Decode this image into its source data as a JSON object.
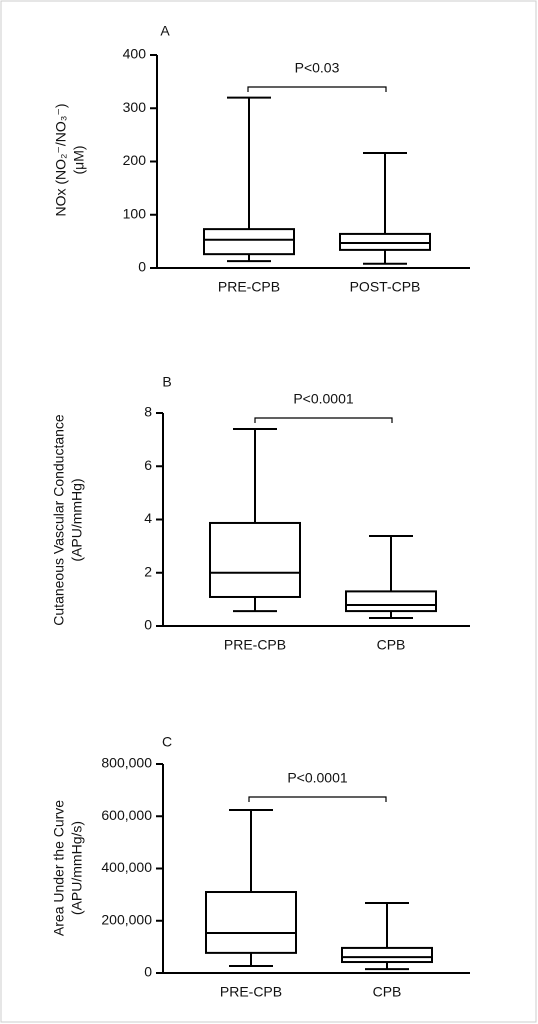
{
  "chart_data": [
    {
      "type": "box",
      "panel": "A",
      "ylabel": [
        "NOx (NO₂⁻/NO₃⁻)",
        "(μM)"
      ],
      "annotation": "P<0.03",
      "color": "#000000",
      "categories": [
        "PRE-CPB",
        "POST-CPB"
      ],
      "min": [
        13,
        8
      ],
      "q1": [
        26,
        34
      ],
      "median": [
        53,
        47
      ],
      "q3": [
        73,
        64
      ],
      "max": [
        320,
        216
      ],
      "ylim": [
        0,
        400
      ],
      "yticks": [
        0,
        100,
        200,
        300,
        400
      ]
    },
    {
      "type": "box",
      "panel": "B",
      "ylabel": [
        "Cutaneous Vascular Conductance",
        "(APU/mmHg)"
      ],
      "annotation": "P<0.0001",
      "color": "#000000",
      "categories": [
        "PRE-CPB",
        "CPB"
      ],
      "min": [
        0.56,
        0.3
      ],
      "q1": [
        1.09,
        0.56
      ],
      "median": [
        2.0,
        0.79
      ],
      "q3": [
        3.87,
        1.3
      ],
      "max": [
        7.4,
        3.38
      ],
      "ylim": [
        0,
        8
      ],
      "yticks": [
        0,
        2,
        4,
        6,
        8
      ]
    },
    {
      "type": "box",
      "panel": "C",
      "ylabel": [
        "Area Under the Curve",
        "(APU/mmHg/s)"
      ],
      "annotation": "P<0.0001",
      "color": "#000000",
      "categories": [
        "PRE-CPB",
        "CPB"
      ],
      "min": [
        27000,
        15000
      ],
      "q1": [
        77000,
        42000
      ],
      "median": [
        153000,
        61000
      ],
      "q3": [
        310000,
        96000
      ],
      "max": [
        624000,
        268000
      ],
      "ylim": [
        0,
        800000
      ],
      "yticks": [
        0,
        {
          "value": 200000,
          "label": "200,000"
        },
        {
          "value": 400000,
          "label": "400,000"
        },
        {
          "value": 600000,
          "label": "600,000"
        },
        {
          "value": 800000,
          "label": "800,000"
        }
      ]
    }
  ]
}
